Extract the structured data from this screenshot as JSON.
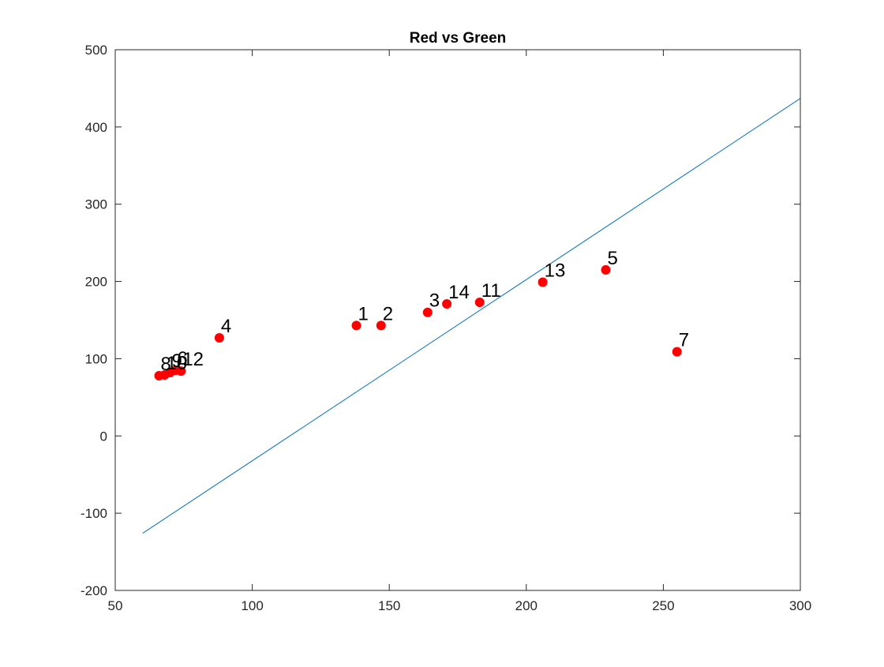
{
  "chart_data": {
    "type": "scatter",
    "title": "Red vs Green",
    "xlabel": "",
    "ylabel": "",
    "xlim": [
      50,
      300
    ],
    "ylim": [
      -200,
      500
    ],
    "xticks": [
      50,
      100,
      150,
      200,
      250,
      300
    ],
    "yticks": [
      -200,
      -100,
      0,
      100,
      200,
      300,
      400,
      500
    ],
    "grid": false,
    "legend": "none",
    "colors": {
      "points": "#ff0000",
      "line": "#0072bd",
      "axes": "#262626"
    },
    "points": [
      {
        "label": "1",
        "x": 138,
        "y": 143
      },
      {
        "label": "2",
        "x": 147,
        "y": 143
      },
      {
        "label": "3",
        "x": 164,
        "y": 160
      },
      {
        "label": "4",
        "x": 88,
        "y": 127
      },
      {
        "label": "5",
        "x": 229,
        "y": 215
      },
      {
        "label": "6",
        "x": 72,
        "y": 85
      },
      {
        "label": "7",
        "x": 255,
        "y": 109
      },
      {
        "label": "8",
        "x": 66,
        "y": 78
      },
      {
        "label": "9",
        "x": 70,
        "y": 82
      },
      {
        "label": "10",
        "x": 68,
        "y": 79
      },
      {
        "label": "11",
        "x": 183,
        "y": 173
      },
      {
        "label": "12",
        "x": 74,
        "y": 84
      },
      {
        "label": "13",
        "x": 206,
        "y": 199
      },
      {
        "label": "14",
        "x": 171,
        "y": 171
      }
    ],
    "fit_line": {
      "x": [
        60,
        300
      ],
      "y": [
        -126,
        437
      ]
    }
  }
}
